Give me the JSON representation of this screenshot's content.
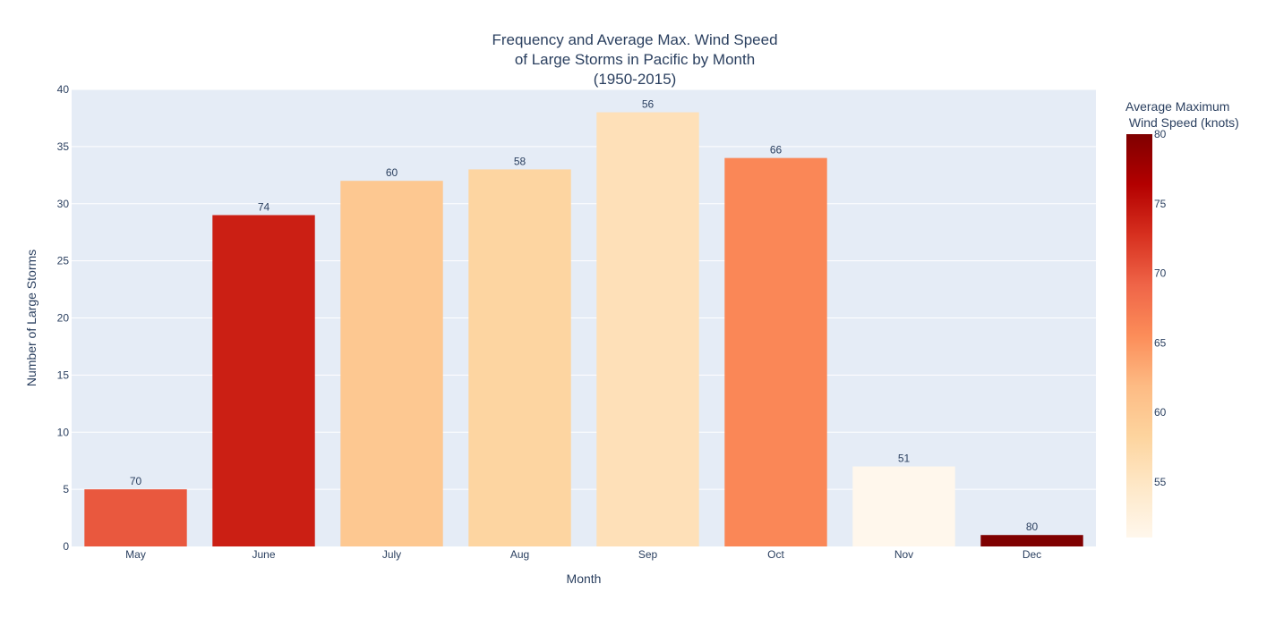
{
  "chart_data": {
    "type": "bar",
    "title_lines": [
      "Frequency and Average Max. Wind Speed",
      "of Large Storms in Pacific by Month",
      "(1950-2015)"
    ],
    "xlabel": "Month",
    "ylabel": "Number of Large Storms",
    "categories": [
      "May",
      "June",
      "July",
      "Aug",
      "Sep",
      "Oct",
      "Nov",
      "Dec"
    ],
    "values": [
      5,
      29,
      32,
      33,
      38,
      34,
      7,
      1
    ],
    "bar_text": [
      "70",
      "74",
      "60",
      "58",
      "56",
      "66",
      "51",
      "80"
    ],
    "color_values": [
      70,
      74,
      60,
      58,
      56,
      66,
      51,
      80
    ],
    "ylim": [
      0,
      40
    ],
    "yticks": [
      0,
      5,
      10,
      15,
      20,
      25,
      30,
      35,
      40
    ],
    "grid": true,
    "colorbar": {
      "title_lines": [
        "Average Maximum",
        " Wind Speed (knots)"
      ],
      "range": [
        51,
        80
      ],
      "ticks": [
        55,
        60,
        65,
        70,
        75,
        80
      ],
      "colorscale": "OrRd",
      "placement": "right"
    },
    "colors": {
      "plot_bg": "#e5ecf6",
      "grid": "#ffffff",
      "text": "#2a3f5f"
    }
  }
}
